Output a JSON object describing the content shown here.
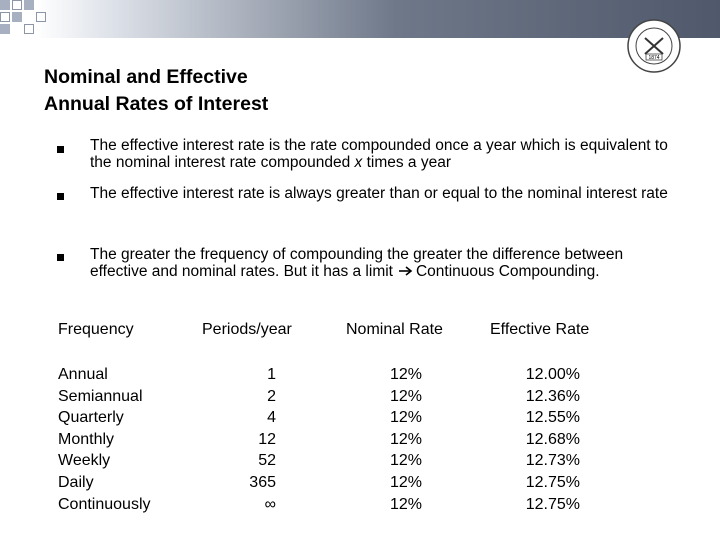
{
  "title_line1": "Nominal and Effective",
  "title_line2": "Annual Rates of Interest",
  "bullets": [
    {
      "part1": "The effective interest rate is the rate compounded once a year which is equivalent to the nominal interest rate compounded ",
      "var": "x",
      "part2": " times a year"
    },
    {
      "text": "The effective interest rate is always greater than or equal to the nominal interest rate"
    },
    {
      "part1": "The greater the frequency of compounding the greater the difference between effective and nominal rates. But it has a limit",
      "part2": "Continuous Compounding."
    }
  ],
  "table": {
    "headers": [
      "Frequency",
      "Periods/year",
      "Nominal Rate",
      "Effective Rate"
    ],
    "rows": [
      [
        "Annual",
        "1",
        "12%",
        "12.00%"
      ],
      [
        "Semiannual",
        "2",
        "12%",
        "12.36%"
      ],
      [
        "Quarterly",
        "4",
        "12%",
        "12.55%"
      ],
      [
        "Monthly",
        "12",
        "12%",
        "12.68%"
      ],
      [
        "Weekly",
        "52",
        "12%",
        "12.73%"
      ],
      [
        "Daily",
        "365",
        "12%",
        "12.75%"
      ],
      [
        "Continuously",
        "∞",
        "12%",
        "12.75%"
      ]
    ]
  },
  "seal": {
    "year": "1874",
    "icon": "school-seal-icon"
  },
  "icons": {
    "arrow": "right-arrow-icon",
    "bullet": "square-bullet-icon"
  },
  "colors": {
    "band_dark": "#4f596b",
    "band_light": "#dfe3ea",
    "square_fill": "#a7b0c0"
  }
}
